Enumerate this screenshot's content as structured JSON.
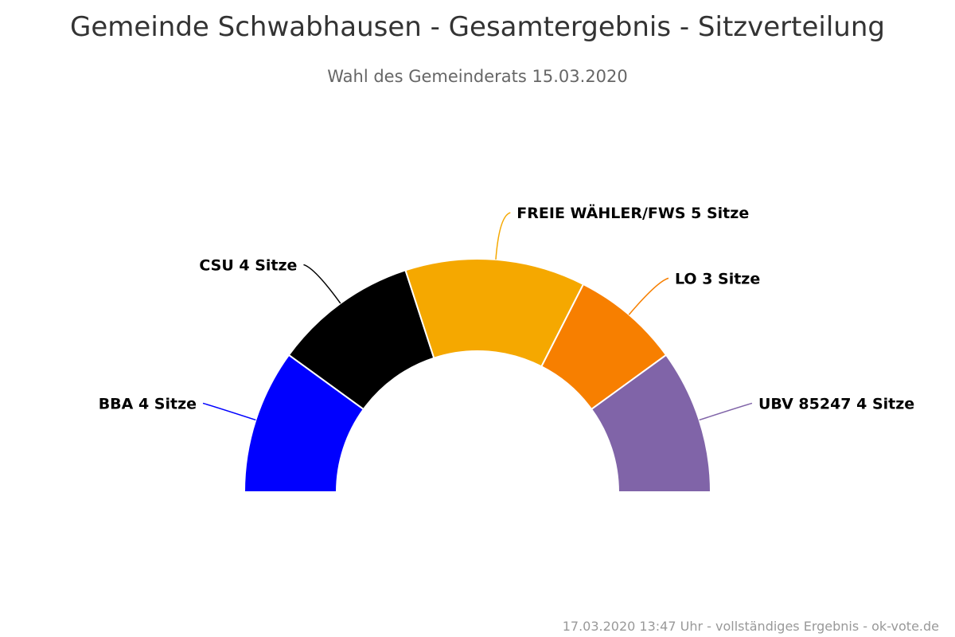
{
  "chart_data": {
    "type": "pie",
    "variant": "semi-donut (parliament seat distribution)",
    "title": "Gemeinde Schwabhausen - Gesamtergebnis - Sitzverteilung",
    "subtitle": "Wahl des Gemeinderats 15.03.2020",
    "unit": "Sitze",
    "series": [
      {
        "name": "BBA",
        "value": 4,
        "color": "#0000ff",
        "label": "BBA 4 Sitze"
      },
      {
        "name": "CSU",
        "value": 4,
        "color": "#000000",
        "label": "CSU 4 Sitze"
      },
      {
        "name": "FREIE WÄHLER/FWS",
        "value": 5,
        "color": "#f5a800",
        "label": "FREIE WÄHLER/FWS 5 Sitze"
      },
      {
        "name": "LO",
        "value": 3,
        "color": "#f77f00",
        "label": "LO 3 Sitze"
      },
      {
        "name": "UBV 85247",
        "value": 4,
        "color": "#8064a8",
        "label": "UBV 85247 4 Sitze"
      }
    ]
  },
  "credits": "17.03.2020 13:47 Uhr - vollständiges Ergebnis - ok-vote.de"
}
